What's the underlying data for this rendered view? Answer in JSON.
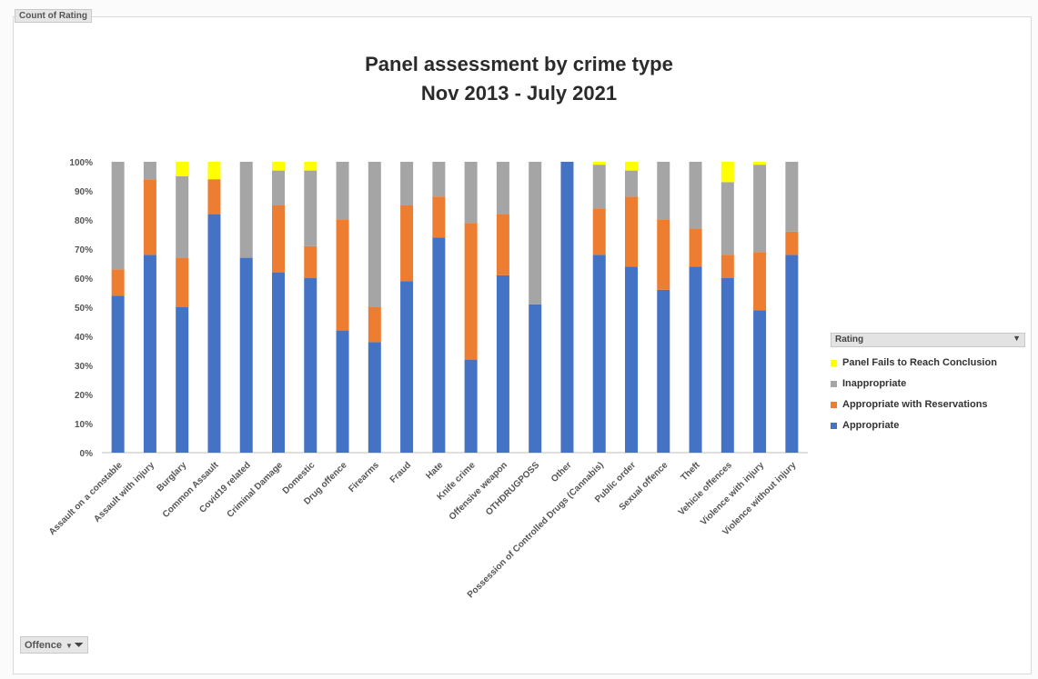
{
  "field_top": "Count of Rating",
  "field_bottom": "Offence",
  "chart_data": {
    "type": "bar",
    "stacked": true,
    "title": [
      "Panel assessment by crime type",
      "Nov 2013 - July 2021"
    ],
    "ylim": [
      0,
      100
    ],
    "yticks": [
      "0%",
      "10%",
      "20%",
      "30%",
      "40%",
      "50%",
      "60%",
      "70%",
      "80%",
      "90%",
      "100%"
    ],
    "legend_title": "Rating",
    "legend_position": "right",
    "categories": [
      "Assault on a constable",
      "Assault with injury",
      "Burglary",
      "Common Assault",
      "Covid19 related",
      "Criminal Damage",
      "Domestic",
      "Drug offence",
      "Firearms",
      "Fraud",
      "Hate",
      "Knife crime",
      "Offensive weapon",
      "OTHDRUGPOSS",
      "Other",
      "Possession of Controlled Drugs (Cannabis)",
      "Public order",
      "Sexual offence",
      "Theft",
      "Vehicle offences",
      "Violence with injury",
      "Violence without injury"
    ],
    "series": [
      {
        "name": "Appropriate",
        "color": "#4472c4",
        "values": [
          54,
          68,
          50,
          82,
          67,
          62,
          60,
          42,
          38,
          59,
          74,
          32,
          61,
          51,
          100,
          68,
          64,
          56,
          64,
          60,
          49,
          68
        ]
      },
      {
        "name": "Appropriate with Reservations",
        "color": "#ed7d31",
        "values": [
          9,
          26,
          17,
          12,
          0,
          23,
          11,
          38,
          12,
          26,
          14,
          47,
          21,
          0,
          0,
          16,
          24,
          24,
          13,
          8,
          20,
          8
        ]
      },
      {
        "name": "Inappropriate",
        "color": "#a5a5a5",
        "values": [
          37,
          6,
          28,
          0,
          33,
          12,
          26,
          20,
          50,
          15,
          12,
          21,
          18,
          49,
          0,
          15,
          9,
          20,
          23,
          25,
          30,
          24
        ]
      },
      {
        "name": "Panel Fails to Reach Conclusion",
        "color": "#ffff00",
        "values": [
          0,
          0,
          5,
          6,
          0,
          3,
          3,
          0,
          0,
          0,
          0,
          0,
          0,
          0,
          0,
          1,
          3,
          0,
          0,
          7,
          1,
          0
        ]
      }
    ]
  }
}
